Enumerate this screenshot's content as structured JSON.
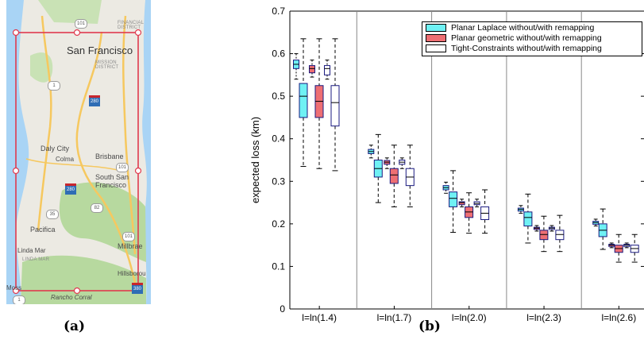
{
  "map": {
    "caption": "(a)",
    "big_city": "San Francisco",
    "labels": {
      "financial": "FINANCIAL\nDISTRICT",
      "mission": "MISSION\nDISTRICT",
      "daly": "Daly City",
      "colma": "Colma",
      "brisbane": "Brisbane",
      "ssf": "South San\nFrancisco",
      "pacifica": "Pacifica",
      "linda": "Linda Mar",
      "lindacaps": "LINDA MAR",
      "millbrae": "Millbrae",
      "hillsborough": "Hillsborou",
      "moss": "Moss",
      "rancho": "Rancho Corral"
    },
    "shields": {
      "s101_top": "101",
      "s1_a": "1",
      "s280_a": "280",
      "s101_mid": "101",
      "s280_b": "280",
      "s35": "35",
      "s82": "82",
      "s101_low": "101",
      "s1_b": "1",
      "s380": "380",
      "s1_c": "1"
    },
    "colors": {
      "rect": "#e03a4e",
      "land": "#eceae3",
      "water": "#a9d4f5",
      "park": "#c9e2b5",
      "road": "#f6c85f"
    }
  },
  "chart": {
    "caption": "(b)",
    "legend": [
      "Planar Laplace without/with remapping",
      "Planar geometric without/with remapping",
      "Tight-Constraints without/with remapping"
    ]
  },
  "chart_data": {
    "type": "box",
    "ylabel": "expected loss (km)",
    "ylim": [
      0,
      0.7
    ],
    "yticks": [
      "0",
      "0.1",
      "0.2",
      "0.3",
      "0.4",
      "0.5",
      "0.6",
      "0.7"
    ],
    "categories": [
      "l=ln(1.4)",
      "l=ln(1.7)",
      "l=ln(2.0)",
      "l=ln(2.3)",
      "l=ln(2.6)"
    ],
    "colors": {
      "laplace": "#6ff1f4",
      "geometric": "#ee6f73",
      "tight": "#ffffff"
    },
    "series": [
      {
        "name": "Planar Laplace without/with remapping",
        "color_key": "laplace",
        "without": [
          {
            "min": 0.54,
            "q1": 0.565,
            "med": 0.575,
            "q3": 0.585,
            "max": 0.6
          },
          {
            "min": 0.355,
            "q1": 0.365,
            "med": 0.37,
            "q3": 0.375,
            "max": 0.385
          },
          {
            "min": 0.272,
            "q1": 0.28,
            "med": 0.285,
            "q3": 0.29,
            "max": 0.298
          },
          {
            "min": 0.225,
            "q1": 0.23,
            "med": 0.234,
            "q3": 0.237,
            "max": 0.243
          },
          {
            "min": 0.195,
            "q1": 0.199,
            "med": 0.203,
            "q3": 0.206,
            "max": 0.211
          }
        ],
        "with": [
          {
            "min": 0.335,
            "q1": 0.45,
            "med": 0.5,
            "q3": 0.53,
            "max": 0.635
          },
          {
            "min": 0.25,
            "q1": 0.31,
            "med": 0.33,
            "q3": 0.35,
            "max": 0.41
          },
          {
            "min": 0.18,
            "q1": 0.24,
            "med": 0.26,
            "q3": 0.275,
            "max": 0.325
          },
          {
            "min": 0.155,
            "q1": 0.195,
            "med": 0.215,
            "q3": 0.228,
            "max": 0.27
          },
          {
            "min": 0.14,
            "q1": 0.17,
            "med": 0.185,
            "q3": 0.2,
            "max": 0.235
          }
        ]
      },
      {
        "name": "Planar geometric without/with remapping",
        "color_key": "geometric",
        "without": [
          {
            "min": 0.545,
            "q1": 0.555,
            "med": 0.565,
            "q3": 0.572,
            "max": 0.585
          },
          {
            "min": 0.33,
            "q1": 0.34,
            "med": 0.345,
            "q3": 0.349,
            "max": 0.355
          },
          {
            "min": 0.24,
            "q1": 0.245,
            "med": 0.25,
            "q3": 0.252,
            "max": 0.258
          },
          {
            "min": 0.183,
            "q1": 0.187,
            "med": 0.19,
            "q3": 0.192,
            "max": 0.196
          },
          {
            "min": 0.144,
            "q1": 0.147,
            "med": 0.15,
            "q3": 0.152,
            "max": 0.155
          }
        ],
        "with": [
          {
            "min": 0.33,
            "q1": 0.45,
            "med": 0.488,
            "q3": 0.525,
            "max": 0.635
          },
          {
            "min": 0.24,
            "q1": 0.295,
            "med": 0.315,
            "q3": 0.33,
            "max": 0.385
          },
          {
            "min": 0.178,
            "q1": 0.215,
            "med": 0.228,
            "q3": 0.24,
            "max": 0.273
          },
          {
            "min": 0.135,
            "q1": 0.163,
            "med": 0.175,
            "q3": 0.185,
            "max": 0.218
          },
          {
            "min": 0.11,
            "q1": 0.133,
            "med": 0.142,
            "q3": 0.15,
            "max": 0.175
          }
        ]
      },
      {
        "name": "Tight-Constraints without/with remapping",
        "color_key": "tight",
        "without": [
          {
            "min": 0.54,
            "q1": 0.55,
            "med": 0.565,
            "q3": 0.572,
            "max": 0.585
          },
          {
            "min": 0.33,
            "q1": 0.34,
            "med": 0.345,
            "q3": 0.35,
            "max": 0.355
          },
          {
            "min": 0.24,
            "q1": 0.245,
            "med": 0.248,
            "q3": 0.252,
            "max": 0.258
          },
          {
            "min": 0.183,
            "q1": 0.187,
            "med": 0.19,
            "q3": 0.192,
            "max": 0.196
          },
          {
            "min": 0.144,
            "q1": 0.147,
            "med": 0.15,
            "q3": 0.152,
            "max": 0.155
          }
        ],
        "with": [
          {
            "min": 0.325,
            "q1": 0.43,
            "med": 0.485,
            "q3": 0.525,
            "max": 0.635
          },
          {
            "min": 0.24,
            "q1": 0.29,
            "med": 0.31,
            "q3": 0.33,
            "max": 0.385
          },
          {
            "min": 0.178,
            "q1": 0.21,
            "med": 0.225,
            "q3": 0.24,
            "max": 0.28
          },
          {
            "min": 0.135,
            "q1": 0.163,
            "med": 0.175,
            "q3": 0.185,
            "max": 0.22
          },
          {
            "min": 0.11,
            "q1": 0.133,
            "med": 0.142,
            "q3": 0.15,
            "max": 0.175
          }
        ]
      }
    ]
  }
}
